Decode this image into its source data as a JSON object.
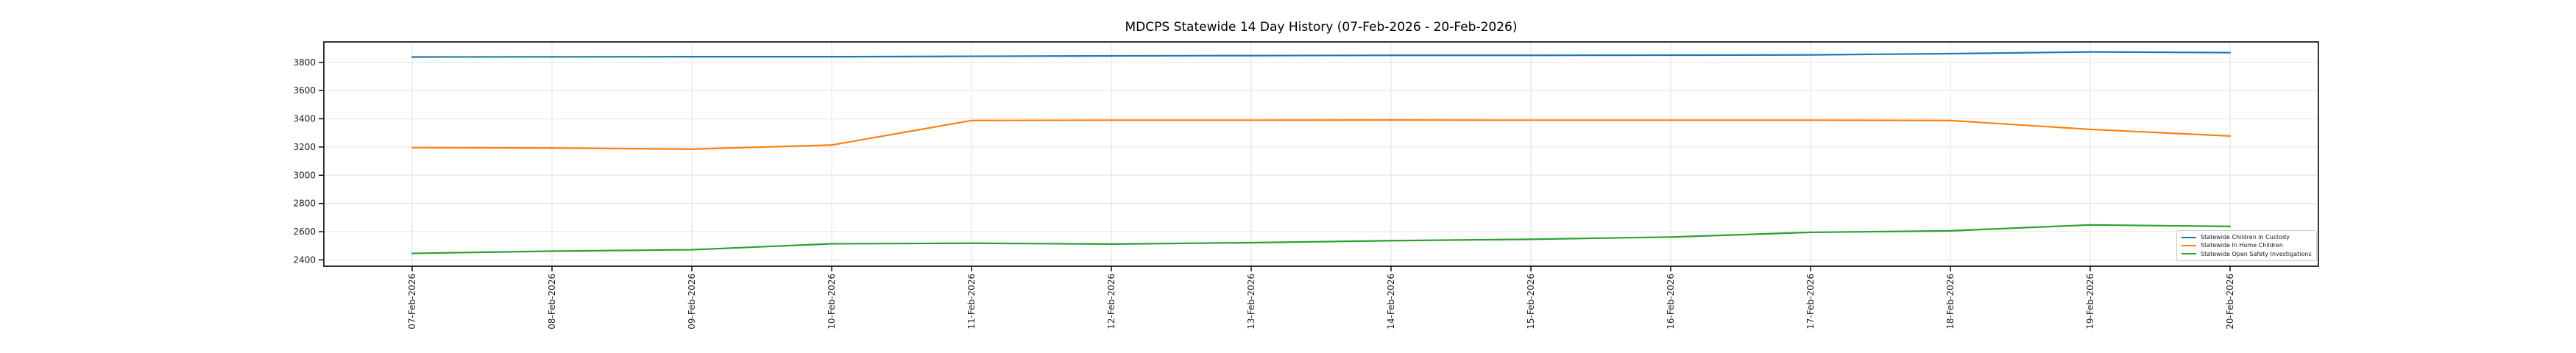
{
  "chart_data": {
    "type": "line",
    "title": "MDCPS Statewide 14 Day History (07-Feb-2026 - 20-Feb-2026)",
    "x": [
      "07-Feb-2026",
      "08-Feb-2026",
      "09-Feb-2026",
      "10-Feb-2026",
      "11-Feb-2026",
      "12-Feb-2026",
      "13-Feb-2026",
      "14-Feb-2026",
      "15-Feb-2026",
      "16-Feb-2026",
      "17-Feb-2026",
      "18-Feb-2026",
      "19-Feb-2026",
      "20-Feb-2026"
    ],
    "yticks": [
      2400,
      2600,
      2800,
      3000,
      3200,
      3400,
      3600,
      3800
    ],
    "ylim": [
      2355,
      3945
    ],
    "grid": true,
    "legend_position": "lower right",
    "series": [
      {
        "name": "Statewide Children in Custody",
        "color": "#1f77b4",
        "values": [
          3838,
          3839,
          3840,
          3840,
          3843,
          3846,
          3848,
          3850,
          3850,
          3851,
          3853,
          3862,
          3874,
          3869
        ]
      },
      {
        "name": "Statewide In Home Children",
        "color": "#ff7f0e",
        "values": [
          3196,
          3193,
          3185,
          3214,
          3388,
          3390,
          3390,
          3391,
          3390,
          3390,
          3390,
          3388,
          3325,
          3278
        ]
      },
      {
        "name": "Statewide Open Safety Investigations",
        "color": "#2ca02c",
        "values": [
          2446,
          2462,
          2472,
          2514,
          2518,
          2512,
          2522,
          2536,
          2546,
          2562,
          2595,
          2606,
          2648,
          2637
        ]
      }
    ]
  },
  "colors": {
    "background": "#ffffff",
    "grid": "#e7e7e7",
    "spine": "#000000",
    "tick_label": "#262626"
  }
}
